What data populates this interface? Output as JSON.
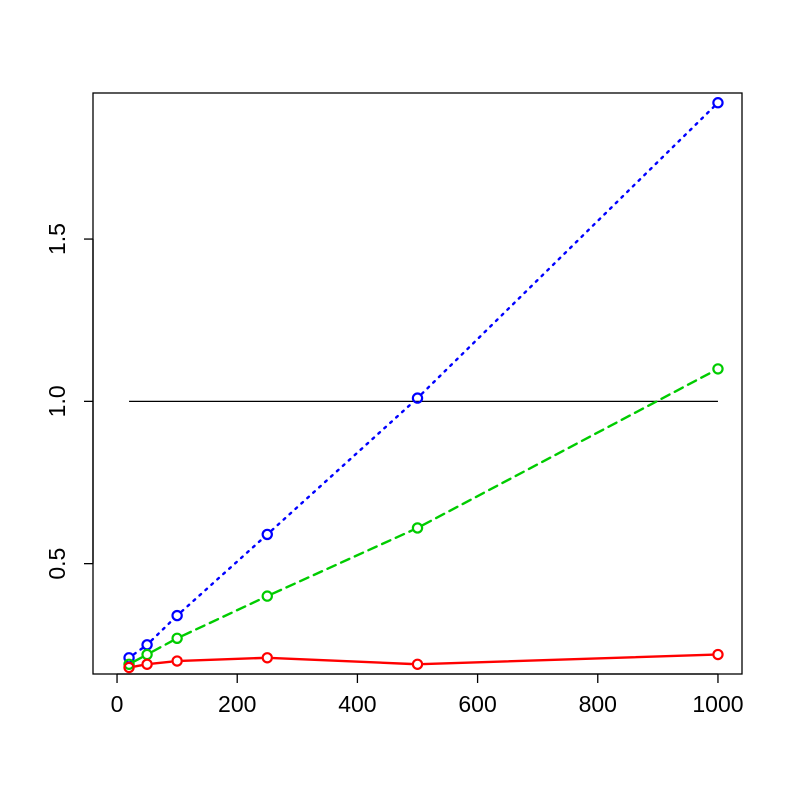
{
  "chart_data": {
    "type": "line",
    "title": "",
    "xlabel": "",
    "ylabel": "",
    "xlim": [
      0,
      1000
    ],
    "ylim": [
      0.16,
      1.95
    ],
    "x_ticks": [
      0,
      200,
      400,
      600,
      800,
      1000
    ],
    "y_ticks": [
      0.5,
      1.0,
      1.5
    ],
    "x_tick_labels": [
      "0",
      "200",
      "400",
      "600",
      "800",
      "1000"
    ],
    "y_tick_labels": [
      "0.5",
      "1.0",
      "1.5"
    ],
    "grid": false,
    "x": [
      20,
      50,
      100,
      250,
      500,
      1000
    ],
    "series": [
      {
        "color": "#0000ff",
        "line_style": "dotted",
        "values": [
          0.21,
          0.25,
          0.34,
          0.59,
          1.01,
          1.92
        ]
      },
      {
        "color": "#00cc00",
        "line_style": "dashed",
        "values": [
          0.19,
          0.22,
          0.27,
          0.4,
          0.61,
          1.1
        ]
      },
      {
        "color": "#ff0000",
        "line_style": "solid",
        "values": [
          0.18,
          0.19,
          0.2,
          0.21,
          0.19,
          0.22
        ]
      }
    ],
    "reference_line": {
      "y": 1.0,
      "x_from": 20,
      "x_to": 1000,
      "color": "#000000"
    }
  }
}
